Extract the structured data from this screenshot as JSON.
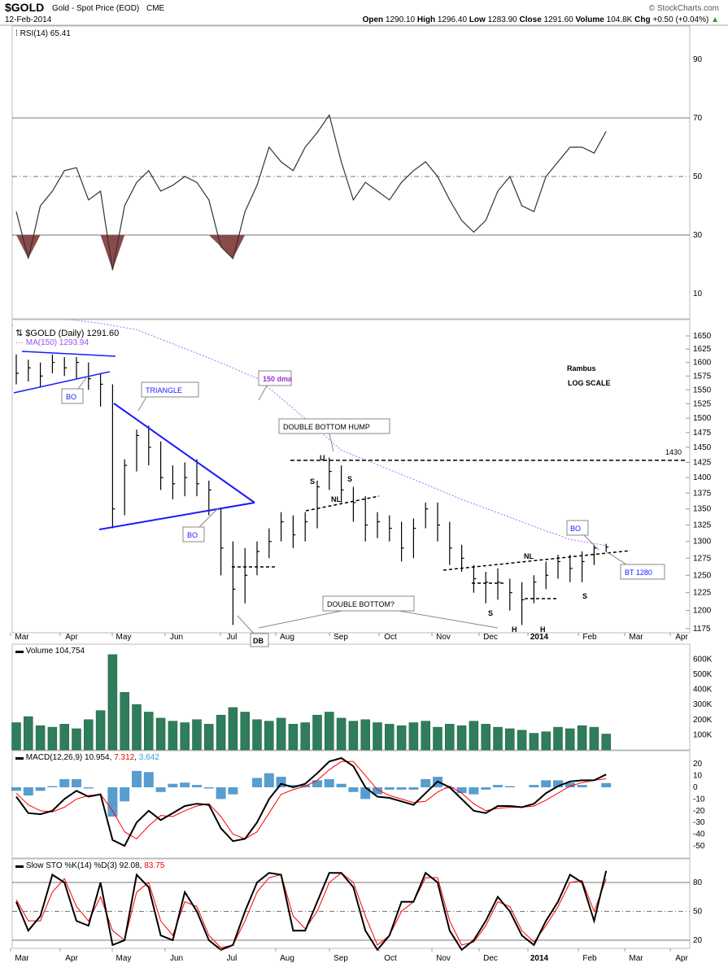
{
  "header": {
    "symbol": "$GOLD",
    "name": "Gold - Spot Price (EOD)",
    "exchange": "CME",
    "date": "12-Feb-2014",
    "copyright": "© StockCharts.com",
    "open_label": "Open",
    "open": "1290.10",
    "high_label": "High",
    "high": "1296.40",
    "low_label": "Low",
    "low": "1283.90",
    "close_label": "Close",
    "close": "1291.60",
    "volume_label": "Volume",
    "volume": "104.8K",
    "chg_label": "Chg",
    "chg": "+0.50 (+0.04%)",
    "chg_arrow": "▲"
  },
  "annotations": {
    "rambus": "Rambus",
    "log_scale": "LOG SCALE",
    "dma150": "150 dma",
    "triangle": "TRIANGLE",
    "bo1": "BO",
    "bo2": "BO",
    "bo3": "BO",
    "double_bottom_hump": "DOUBLE BOTTOM HUMP",
    "double_bottom_q": "DOUBLE BOTTOM?",
    "db": "DB",
    "level_1430": "1430",
    "bt1280": "BT 1280",
    "s1": "S",
    "s2": "S",
    "h_left": "H",
    "nl1": "NL",
    "u": "U",
    "s3": "S",
    "s4": "S",
    "h1": "H",
    "h2": "H",
    "nl2": "NL"
  },
  "chart_data": [
    {
      "type": "line",
      "title": "RSI(14) 65.41",
      "y_ticks": [
        "90",
        "70",
        "50",
        "30",
        "10"
      ],
      "ylim": [
        0,
        100
      ],
      "reference_lines": [
        70,
        50,
        30
      ],
      "values": [
        38,
        22,
        40,
        45,
        52,
        53,
        42,
        45,
        18,
        40,
        48,
        52,
        45,
        47,
        50,
        48,
        42,
        26,
        22,
        38,
        47,
        60,
        55,
        52,
        60,
        65,
        71,
        55,
        42,
        48,
        45,
        42,
        48,
        52,
        55,
        50,
        42,
        35,
        31,
        35,
        45,
        50,
        40,
        38,
        50,
        55,
        60,
        60,
        58,
        65.41
      ],
      "colors": {
        "line": "#333333",
        "oversold_fill": "#8b4a4a"
      }
    },
    {
      "type": "ohlc",
      "title": "$GOLD (Daily) 1291.60",
      "ma_label": "MA(150) 1293.94",
      "scale": "log",
      "ylim": [
        1165,
        1665
      ],
      "y_ticks": [
        "1650",
        "1625",
        "1600",
        "1575",
        "1550",
        "1525",
        "1500",
        "1475",
        "1450",
        "1425",
        "1400",
        "1375",
        "1350",
        "1325",
        "1300",
        "1275",
        "1250",
        "1225",
        "1200",
        "1175"
      ],
      "x_ticks": [
        "Mar",
        "Apr",
        "May",
        "Jun",
        "Jul",
        "Aug",
        "Sep",
        "Oct",
        "Nov",
        "Dec",
        "2014",
        "Feb",
        "Mar",
        "Apr"
      ],
      "close": [
        1580,
        1590,
        1575,
        1600,
        1590,
        1600,
        1570,
        1560,
        1350,
        1420,
        1470,
        1450,
        1400,
        1390,
        1400,
        1390,
        1380,
        1290,
        1230,
        1250,
        1285,
        1300,
        1330,
        1310,
        1330,
        1385,
        1410,
        1380,
        1360,
        1325,
        1330,
        1320,
        1290,
        1320,
        1350,
        1325,
        1290,
        1275,
        1245,
        1240,
        1240,
        1225,
        1215,
        1240,
        1250,
        1270,
        1260,
        1270,
        1290,
        1291.6
      ],
      "high": [
        1615,
        1605,
        1600,
        1615,
        1610,
        1610,
        1600,
        1580,
        1560,
        1430,
        1480,
        1487,
        1460,
        1420,
        1425,
        1430,
        1395,
        1350,
        1300,
        1290,
        1300,
        1320,
        1345,
        1340,
        1345,
        1395,
        1433,
        1420,
        1385,
        1370,
        1345,
        1340,
        1330,
        1335,
        1360,
        1360,
        1330,
        1295,
        1265,
        1255,
        1260,
        1245,
        1240,
        1250,
        1270,
        1280,
        1280,
        1285,
        1295,
        1296.4
      ],
      "low": [
        1560,
        1565,
        1555,
        1580,
        1575,
        1570,
        1550,
        1520,
        1320,
        1340,
        1410,
        1420,
        1380,
        1365,
        1370,
        1370,
        1340,
        1250,
        1180,
        1210,
        1250,
        1275,
        1300,
        1290,
        1300,
        1320,
        1380,
        1360,
        1330,
        1300,
        1305,
        1300,
        1270,
        1275,
        1320,
        1300,
        1265,
        1255,
        1225,
        1210,
        1215,
        1200,
        1180,
        1210,
        1230,
        1245,
        1240,
        1240,
        1265,
        1283.9
      ],
      "ma150": [
        1690,
        1688,
        1686,
        1684,
        1682,
        1680,
        1677,
        1674,
        1670,
        1666,
        1662,
        1653,
        1644,
        1635,
        1626,
        1617,
        1608,
        1599,
        1590,
        1580,
        1571,
        1553,
        1535,
        1517,
        1499,
        1481,
        1463,
        1445,
        1437,
        1429,
        1421,
        1413,
        1405,
        1397,
        1389,
        1381,
        1373,
        1365,
        1358,
        1351,
        1344,
        1337,
        1330,
        1323,
        1316,
        1310,
        1303,
        1300,
        1297,
        1293.94
      ],
      "colors": {
        "bars": "#000000",
        "ma": "#b266ff",
        "trendlines": "#1a1aff"
      }
    },
    {
      "type": "bar",
      "title": "Volume 104,754",
      "y_ticks": [
        "600K",
        "500K",
        "400K",
        "300K",
        "200K",
        "100K"
      ],
      "values_k": [
        180,
        220,
        160,
        150,
        170,
        140,
        200,
        260,
        630,
        380,
        300,
        250,
        210,
        190,
        180,
        200,
        170,
        230,
        280,
        250,
        200,
        190,
        210,
        170,
        180,
        230,
        250,
        210,
        190,
        200,
        180,
        170,
        160,
        180,
        190,
        150,
        170,
        160,
        190,
        170,
        150,
        140,
        130,
        110,
        120,
        150,
        140,
        160,
        150,
        104.754
      ],
      "colors": {
        "bars": "#2e7d5b"
      }
    },
    {
      "type": "line",
      "title": "MACD(12,26,9)",
      "macd_value": "10.954",
      "signal_value": "7.312",
      "hist_value": "3.642",
      "y_ticks": [
        "20",
        "10",
        "0",
        "-10",
        "-20",
        "-30",
        "-40",
        "-50"
      ],
      "ylim": [
        -55,
        30
      ],
      "macd": [
        -8,
        -22,
        -23,
        -20,
        -10,
        -3,
        -8,
        -6,
        -45,
        -50,
        -30,
        -20,
        -28,
        -22,
        -16,
        -14,
        -15,
        -35,
        -46,
        -44,
        -30,
        -10,
        3,
        0,
        3,
        12,
        22,
        25,
        18,
        0,
        -8,
        -9,
        -12,
        -15,
        -5,
        5,
        0,
        -10,
        -20,
        -22,
        -16,
        -16,
        -17,
        -14,
        -5,
        1,
        5,
        6,
        6,
        10.954
      ],
      "signal": [
        -5,
        -15,
        -20,
        -21,
        -17,
        -10,
        -7,
        -6,
        -20,
        -38,
        -44,
        -33,
        -24,
        -25,
        -20,
        -16,
        -14,
        -25,
        -40,
        -44,
        -38,
        -22,
        -6,
        -2,
        1,
        6,
        15,
        22,
        22,
        10,
        -2,
        -7,
        -10,
        -13,
        -12,
        -4,
        1,
        -5,
        -14,
        -20,
        -18,
        -17,
        -17,
        -16,
        -11,
        -5,
        1,
        4,
        6,
        7.312
      ],
      "colors": {
        "macd": "#000000",
        "signal": "#ff0000",
        "hist": "#3a8cc6"
      }
    },
    {
      "type": "line",
      "title": "Slow STO %K(14) %D(3)",
      "k_value": "92.08",
      "d_value": "83.75",
      "y_ticks": [
        "80",
        "50",
        "20"
      ],
      "ylim": [
        0,
        100
      ],
      "reference_lines": [
        80,
        50,
        20
      ],
      "k": [
        60,
        30,
        45,
        88,
        80,
        40,
        35,
        80,
        15,
        20,
        88,
        75,
        25,
        20,
        70,
        50,
        20,
        10,
        15,
        50,
        80,
        90,
        88,
        30,
        30,
        60,
        90,
        90,
        75,
        30,
        10,
        25,
        60,
        60,
        90,
        80,
        30,
        10,
        20,
        40,
        65,
        50,
        25,
        15,
        40,
        60,
        88,
        80,
        40,
        92.08
      ],
      "d": [
        62,
        40,
        40,
        70,
        84,
        55,
        40,
        65,
        30,
        20,
        70,
        80,
        40,
        25,
        60,
        55,
        25,
        12,
        15,
        40,
        70,
        85,
        88,
        45,
        32,
        50,
        80,
        90,
        80,
        45,
        15,
        25,
        50,
        60,
        85,
        85,
        40,
        15,
        18,
        35,
        60,
        55,
        30,
        18,
        35,
        55,
        80,
        82,
        50,
        83.75
      ],
      "colors": {
        "k": "#000000",
        "d": "#ff0000"
      }
    }
  ]
}
